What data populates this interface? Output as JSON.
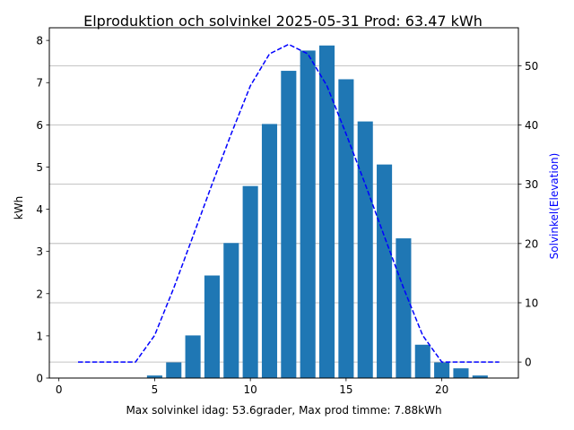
{
  "chart_data": {
    "type": "bar",
    "title": "Elproduktion och solvinkel 2025-05-31 Prod: 63.47 kWh",
    "xlabel": "Max solvinkel idag: 53.6grader, Max prod timme: 7.88kWh",
    "ylabel": "kWh",
    "y2label": "Solvinkel(Elevation)",
    "xlim": [
      -0.5,
      24.0
    ],
    "ylim": [
      0,
      8.3
    ],
    "y2lim": [
      -2.7,
      56.4
    ],
    "xticks": [
      0,
      5,
      10,
      15,
      20
    ],
    "yticks": [
      0,
      1,
      2,
      3,
      4,
      5,
      6,
      7,
      8
    ],
    "y2ticks": [
      0,
      10,
      20,
      30,
      40,
      50
    ],
    "grid": "horizontal lines at right-axis ticks",
    "series": [
      {
        "kind": "bar",
        "color": "#1f77b4",
        "x": [
          5,
          6,
          7,
          8,
          9,
          10,
          11,
          12,
          13,
          14,
          15,
          16,
          17,
          18,
          19,
          20,
          21,
          22
        ],
        "values": [
          0.06,
          0.37,
          1.01,
          2.43,
          3.2,
          4.55,
          6.02,
          7.28,
          7.76,
          7.88,
          7.08,
          6.08,
          5.06,
          3.31,
          0.79,
          0.37,
          0.23,
          0.06
        ]
      },
      {
        "kind": "line",
        "axis": "right",
        "style": "dashed",
        "color": "#0000ff",
        "x": [
          1,
          2,
          3,
          4,
          5,
          6,
          7,
          8,
          9,
          10,
          11,
          12,
          13,
          14,
          15,
          16,
          17,
          18,
          19,
          20,
          21,
          22,
          23
        ],
        "values": [
          0,
          0,
          0,
          0,
          4.5,
          12.5,
          21.2,
          30.0,
          38.5,
          46.6,
          52.0,
          53.6,
          52.0,
          46.6,
          38.5,
          30.0,
          21.2,
          12.5,
          4.5,
          0,
          0,
          0,
          0
        ]
      }
    ]
  }
}
